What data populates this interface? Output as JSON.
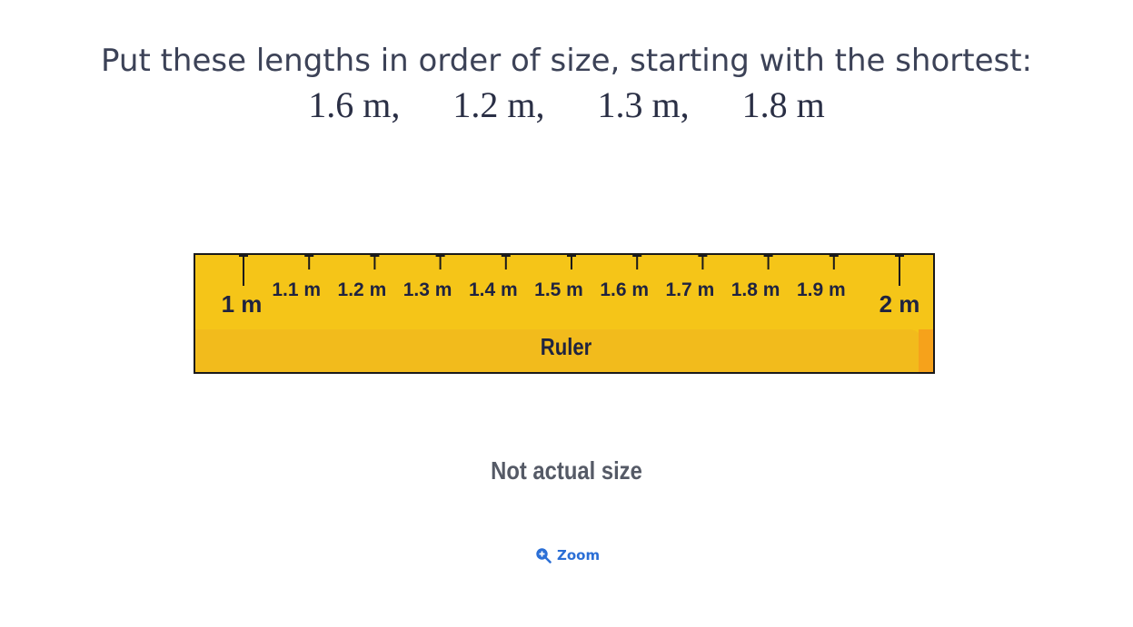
{
  "question": {
    "prompt": "Put these lengths in order of size, starting with the shortest:",
    "lengths": [
      "1.6 m,",
      "1.2 m,",
      "1.3 m,",
      "1.8 m"
    ]
  },
  "ruler": {
    "name": "Ruler",
    "start_label": "1 m",
    "end_label": "2 m",
    "tick_labels": [
      "1.1 m",
      "1.2 m",
      "1.3 m",
      "1.4 m",
      "1.5 m",
      "1.6 m",
      "1.7 m",
      "1.8 m",
      "1.9 m"
    ]
  },
  "note": "Not actual size",
  "zoom": {
    "label": "Zoom",
    "icon": "zoom-in-icon"
  },
  "colors": {
    "ruler": "#f5c518",
    "accent": "#2b6fd6"
  }
}
